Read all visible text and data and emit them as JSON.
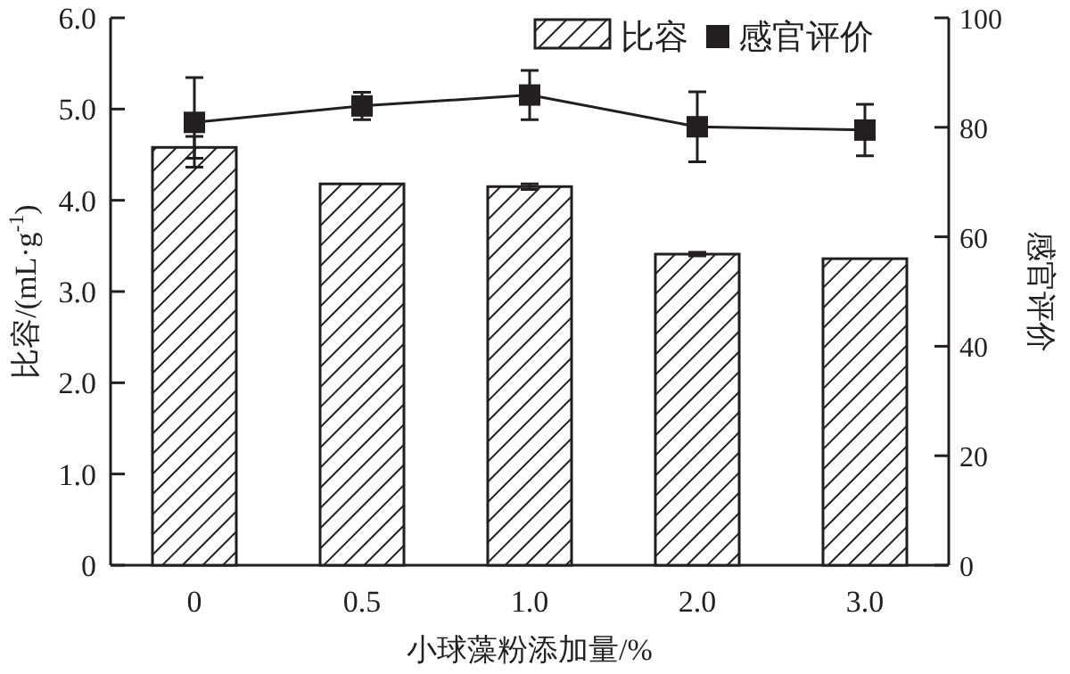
{
  "chart_data": {
    "type": "bar",
    "xlabel": "小球藻粉添加量/%",
    "ylabel": "比容/(mL·g$^{-1}$)",
    "y2label": "感官评价",
    "categories": [
      "0",
      "0.5",
      "1.0",
      "2.0",
      "3.0"
    ],
    "series": [
      {
        "name": "比容",
        "color": "#231f20",
        "values": [
          4.58,
          4.18,
          4.15,
          3.41,
          3.36
        ],
        "errors": [
          0.12,
          null,
          0.03,
          0.02,
          null
        ]
      },
      {
        "name": "感官评价",
        "type": "line",
        "axis": "y2",
        "color": "#231f20",
        "marker": "square",
        "values": [
          80.9,
          83.9,
          85.9,
          80.1,
          79.5
        ],
        "errors": [
          8.2,
          2.5,
          4.5,
          6.4,
          4.7
        ]
      }
    ],
    "ylim": [
      0,
      6
    ],
    "yticks": [
      {
        "value": 0,
        "label": "0"
      },
      {
        "value": 1,
        "label": "1.0"
      },
      {
        "value": 2,
        "label": "2.0"
      },
      {
        "value": 3,
        "label": "3.0"
      },
      {
        "value": 4,
        "label": "4.0"
      },
      {
        "value": 5,
        "label": "5.0"
      },
      {
        "value": 6,
        "label": "6.0"
      }
    ],
    "y2lim": [
      0,
      100
    ],
    "y2ticks": [
      0,
      20,
      40,
      60,
      80,
      100
    ],
    "legend": "top right",
    "grid": false
  }
}
